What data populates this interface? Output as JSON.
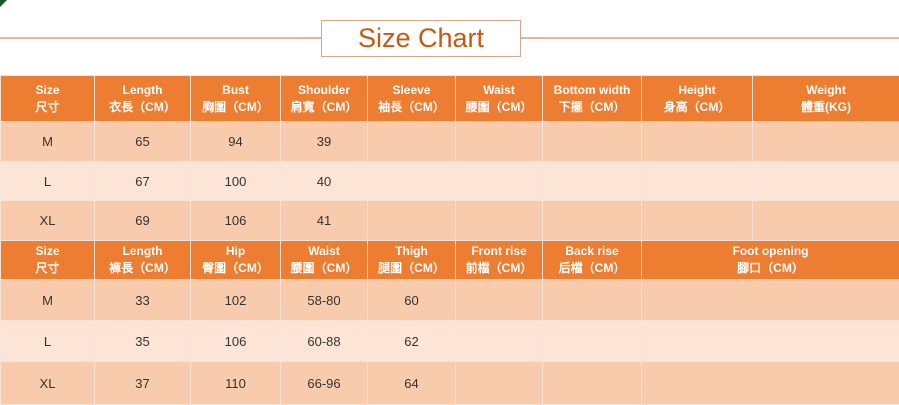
{
  "title": "Size Chart",
  "colors": {
    "header": "#ed7d31",
    "row_dark": "#f8cbad",
    "row_light": "#fce4d6",
    "title_text": "#c55a11"
  },
  "top_table": {
    "headers": [
      {
        "en": "Size",
        "zh": "尺寸"
      },
      {
        "en": "Length",
        "zh": "衣長（CM）"
      },
      {
        "en": "Bust",
        "zh": "胸圍（CM）"
      },
      {
        "en": "Shoulder",
        "zh": "肩寬（CM）"
      },
      {
        "en": "Sleeve",
        "zh": "袖長（CM）"
      },
      {
        "en": "Waist",
        "zh": "腰圍（CM）"
      },
      {
        "en": "Bottom width",
        "zh": "下擺（CM）"
      },
      {
        "en": "Height",
        "zh": "身高（CM）"
      },
      {
        "en": "Weight",
        "zh": "體重(KG)"
      }
    ],
    "rows": [
      [
        "M",
        "65",
        "94",
        "39",
        "",
        "",
        "",
        "",
        ""
      ],
      [
        "L",
        "67",
        "100",
        "40",
        "",
        "",
        "",
        "",
        ""
      ],
      [
        "XL",
        "69",
        "106",
        "41",
        "",
        "",
        "",
        "",
        ""
      ]
    ]
  },
  "bottom_table": {
    "headers": [
      {
        "en": "Size",
        "zh": "尺寸"
      },
      {
        "en": "Length",
        "zh": "褲長（CM）"
      },
      {
        "en": "Hip",
        "zh": "臀圍（CM）"
      },
      {
        "en": "Waist",
        "zh": "腰圍（CM）"
      },
      {
        "en": "Thigh",
        "zh": "腿圍（CM）"
      },
      {
        "en": "Front rise",
        "zh": "前檔（CM）"
      },
      {
        "en": "Back rise",
        "zh": "后檔（CM）"
      },
      {
        "en": "Foot opening",
        "zh": "腳口（CM）"
      }
    ],
    "rows": [
      [
        "M",
        "33",
        "102",
        "58-80",
        "60",
        "",
        "",
        ""
      ],
      [
        "L",
        "35",
        "106",
        "60-88",
        "62",
        "",
        "",
        ""
      ],
      [
        "XL",
        "37",
        "110",
        "66-96",
        "64",
        "",
        "",
        ""
      ]
    ]
  }
}
